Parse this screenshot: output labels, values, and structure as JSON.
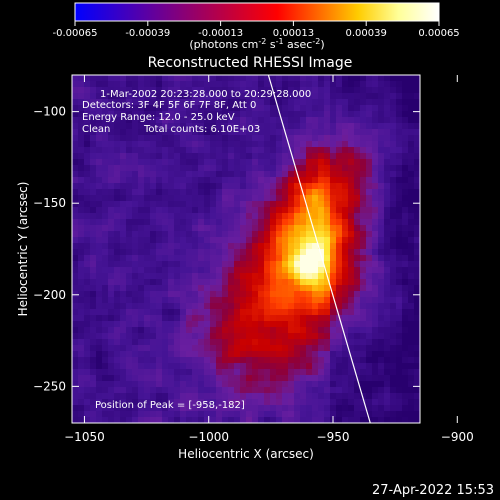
{
  "chart_data": {
    "type": "heatmap",
    "title": "Reconstructed RHESSI Image",
    "colorbar": {
      "ticks": [
        "-0.00065",
        "-0.00039",
        "-0.00013",
        "0.00013",
        "0.00039",
        "0.00065"
      ],
      "range": [
        -0.00065,
        0.00065
      ],
      "label_main": "(photons cm",
      "label_sup1": "-2",
      "label_mid1": " s",
      "label_sup2": "-1",
      "label_mid2": " asec",
      "label_sup3": "-2",
      "label_end": ")",
      "colormap": [
        "#0000ff",
        "#3300cc",
        "#660099",
        "#990066",
        "#cc0033",
        "#ff0000",
        "#ff6600",
        "#ffcc00",
        "#ffff99",
        "#ffffff"
      ]
    },
    "xlabel": "Heliocentric X (arcsec)",
    "ylabel": "Heliocentric Y (arcsec)",
    "xlim": [
      -1055,
      -915
    ],
    "ylim": [
      -270,
      -80
    ],
    "xticks": [
      -1050,
      -1000,
      -950,
      -900
    ],
    "yticks": [
      -100,
      -150,
      -200,
      -250
    ],
    "annotations": {
      "time_range": "1-Mar-2002 20:23:28.000 to 20:29:28.000",
      "detectors": "Detectors: 3F 4F 5F 6F 7F 8F, Att 0",
      "energy": "Energy Range: 12.0 - 25.0 keV",
      "clean": "Clean",
      "counts": "Total counts: 6.10E+03",
      "peak": "Position of Peak = [-958,-182]"
    },
    "peak": {
      "x": -958,
      "y": -182
    },
    "limb": [
      {
        "x": -976,
        "y": -80
      },
      {
        "x": -935,
        "y": -270
      }
    ]
  },
  "footer": {
    "timestamp": "27-Apr-2022 15:53"
  }
}
